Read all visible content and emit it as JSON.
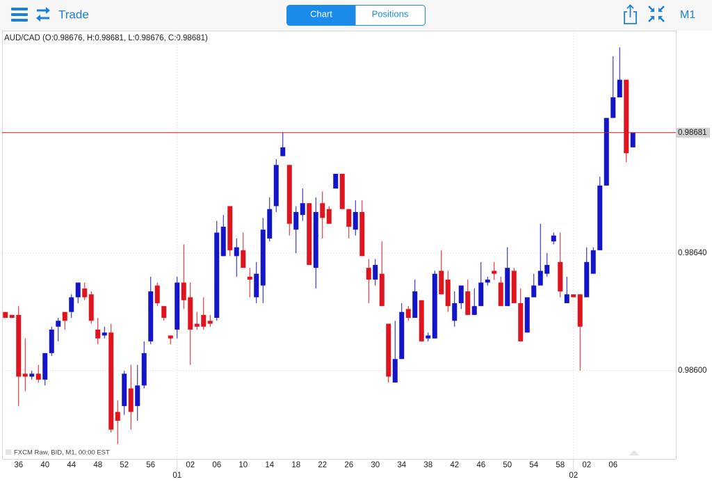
{
  "toolbar": {
    "title": "Trade",
    "tabs": [
      "Chart",
      "Positions"
    ],
    "timeframe": "M1"
  },
  "chart_data": {
    "type": "candlestick",
    "title": "AUD/CAD (O:0.98676, H:0.98681, L:0.98676, C:0.98681)",
    "footnote": "FXCM Raw, BID, M1, 00:00 EST",
    "up_color": "#1414c8",
    "down_color": "#e0141e",
    "series": [
      {
        "open": [
          0.9862,
          0.98619,
          0.98619,
          0.98599,
          0.98598,
          0.98599,
          0.98597,
          0.98606,
          0.98615,
          0.9862,
          0.9862,
          0.98625,
          0.98628,
          0.98626,
          0.98614,
          0.98612,
          0.98613,
          0.98586,
          0.98588,
          0.98594,
          0.98588,
          0.98595,
          0.9861,
          0.98629,
          0.98622,
          0.98612,
          0.98614,
          0.9863,
          0.98625,
          0.98616,
          0.98619,
          0.98617,
          0.98618,
          0.98639,
          0.98656,
          0.98639,
          0.98641,
          0.98632,
          0.98625,
          0.98629,
          0.98645,
          0.98656,
          0.98673,
          0.9867,
          0.98648,
          0.98653,
          0.98657,
          0.98635,
          0.98657,
          0.98655,
          0.98662,
          0.98667,
          0.98655,
          0.98648,
          0.98654,
          0.98635,
          0.98631,
          0.98633,
          0.98616,
          0.98596,
          0.98604,
          0.98621,
          0.98618,
          0.98624,
          0.98611,
          0.98611,
          0.98634,
          0.98631,
          0.98617,
          0.98623,
          0.98627,
          0.98619,
          0.98622,
          0.9863,
          0.98634,
          0.9863,
          0.98622,
          0.98634,
          0.98623,
          0.98613,
          0.98625,
          0.98629,
          0.98633,
          0.98644,
          0.98637,
          0.98623,
          0.98626,
          0.98626,
          0.98625,
          0.98633,
          0.98641,
          0.98663,
          0.98686,
          0.98693,
          0.98699,
          0.98676
        ],
        "high": [
          0.9862,
          0.98619,
          0.98622,
          0.98611,
          0.986,
          0.98602,
          0.98606,
          0.98615,
          0.98618,
          0.9862,
          0.98626,
          0.9863,
          0.9863,
          0.98627,
          0.98618,
          0.98615,
          0.98616,
          0.9859,
          0.986,
          0.98602,
          0.98602,
          0.9861,
          0.98632,
          0.9863,
          0.98622,
          0.98612,
          0.98632,
          0.98643,
          0.9863,
          0.9862,
          0.98625,
          0.98619,
          0.98651,
          0.98653,
          0.98656,
          0.98645,
          0.98647,
          0.98635,
          0.98637,
          0.98652,
          0.98659,
          0.98672,
          0.98681,
          0.9867,
          0.98656,
          0.98662,
          0.98657,
          0.98659,
          0.98661,
          0.98656,
          0.98667,
          0.98667,
          0.98655,
          0.98658,
          0.98658,
          0.98638,
          0.98638,
          0.98644,
          0.98616,
          0.98617,
          0.98623,
          0.98622,
          0.98631,
          0.98624,
          0.98613,
          0.98634,
          0.98641,
          0.98634,
          0.98627,
          0.98629,
          0.98631,
          0.98628,
          0.98637,
          0.98632,
          0.98637,
          0.98632,
          0.98642,
          0.98635,
          0.98628,
          0.98625,
          0.98633,
          0.9865,
          0.9864,
          0.98647,
          0.98647,
          0.98632,
          0.98626,
          0.98626,
          0.98642,
          0.98642,
          0.98666,
          0.98686,
          0.98707,
          0.9871,
          0.98699,
          0.98681
        ],
        "low": [
          0.98618,
          0.98618,
          0.98588,
          0.98593,
          0.98597,
          0.98596,
          0.98595,
          0.98605,
          0.9861,
          0.98614,
          0.98618,
          0.98623,
          0.98624,
          0.98616,
          0.98609,
          0.98611,
          0.98579,
          0.98575,
          0.98585,
          0.9858,
          0.98583,
          0.98594,
          0.98609,
          0.98622,
          0.98617,
          0.98609,
          0.98611,
          0.98621,
          0.98602,
          0.98614,
          0.98614,
          0.98615,
          0.98617,
          0.98639,
          0.98639,
          0.98632,
          0.98635,
          0.98625,
          0.98623,
          0.98623,
          0.98644,
          0.98654,
          0.98673,
          0.98646,
          0.9864,
          0.98651,
          0.98636,
          0.98628,
          0.98645,
          0.9865,
          0.98662,
          0.98655,
          0.98645,
          0.98646,
          0.98639,
          0.98623,
          0.98629,
          0.98622,
          0.98596,
          0.98596,
          0.98604,
          0.98617,
          0.98618,
          0.9861,
          0.9861,
          0.98611,
          0.98626,
          0.9862,
          0.98615,
          0.98621,
          0.98619,
          0.98619,
          0.98622,
          0.98629,
          0.98631,
          0.98622,
          0.98622,
          0.98623,
          0.9861,
          0.98613,
          0.98625,
          0.98629,
          0.98632,
          0.98643,
          0.98625,
          0.98623,
          0.98625,
          0.986,
          0.98625,
          0.98633,
          0.98641,
          0.98663,
          0.98686,
          0.98693,
          0.98671,
          0.98676
        ],
        "close": [
          0.98618,
          0.98618,
          0.98598,
          0.98598,
          0.98599,
          0.98597,
          0.98606,
          0.98614,
          0.98617,
          0.98617,
          0.98625,
          0.9863,
          0.98625,
          0.98617,
          0.98611,
          0.98613,
          0.9858,
          0.98583,
          0.98599,
          0.98586,
          0.98595,
          0.98606,
          0.98627,
          0.98623,
          0.98618,
          0.98611,
          0.9863,
          0.98624,
          0.98614,
          0.98615,
          0.98615,
          0.98616,
          0.98647,
          0.98649,
          0.98641,
          0.98642,
          0.98635,
          0.98631,
          0.98633,
          0.98648,
          0.98655,
          0.9867,
          0.98676,
          0.9865,
          0.98654,
          0.98657,
          0.98636,
          0.98654,
          0.98652,
          0.9865,
          0.98667,
          0.98655,
          0.98649,
          0.98654,
          0.98639,
          0.98631,
          0.98636,
          0.98622,
          0.98598,
          0.98604,
          0.9862,
          0.98618,
          0.98627,
          0.9861,
          0.98612,
          0.98633,
          0.98626,
          0.98622,
          0.98623,
          0.98629,
          0.98619,
          0.98622,
          0.9863,
          0.98631,
          0.98633,
          0.98622,
          0.98635,
          0.98623,
          0.9861,
          0.98625,
          0.98629,
          0.98634,
          0.98636,
          0.98646,
          0.98627,
          0.98626,
          0.98625,
          0.98615,
          0.98637,
          0.98641,
          0.98663,
          0.98686,
          0.98693,
          0.98699,
          0.98674,
          0.98681
        ]
      }
    ],
    "ylim": [
      0.9857,
      0.98715
    ],
    "yticks": [
      {
        "value": 0.986,
        "label": "0.98600"
      },
      {
        "value": 0.9864,
        "label": "0.98640"
      }
    ],
    "last_price": {
      "value": 0.98681,
      "label": "0.98681",
      "color": "#c81e1e"
    },
    "xlim": [
      -0.5,
      101.5
    ],
    "xticks": [
      {
        "value": 2,
        "label": "36"
      },
      {
        "value": 6,
        "label": "40"
      },
      {
        "value": 10,
        "label": "44"
      },
      {
        "value": 14,
        "label": "48"
      },
      {
        "value": 18,
        "label": "52"
      },
      {
        "value": 22,
        "label": "56"
      },
      {
        "value": 28,
        "label": "02"
      },
      {
        "value": 32,
        "label": "06"
      },
      {
        "value": 36,
        "label": "10"
      },
      {
        "value": 40,
        "label": "14"
      },
      {
        "value": 44,
        "label": "18"
      },
      {
        "value": 48,
        "label": "22"
      },
      {
        "value": 52,
        "label": "26"
      },
      {
        "value": 56,
        "label": "30"
      },
      {
        "value": 60,
        "label": "34"
      },
      {
        "value": 64,
        "label": "38"
      },
      {
        "value": 68,
        "label": "42"
      },
      {
        "value": 72,
        "label": "46"
      },
      {
        "value": 76,
        "label": "50"
      },
      {
        "value": 80,
        "label": "54"
      },
      {
        "value": 84,
        "label": "58"
      },
      {
        "value": 88,
        "label": "02"
      },
      {
        "value": 92,
        "label": "06"
      }
    ],
    "date_ticks": [
      {
        "value": 26,
        "label": "01"
      },
      {
        "value": 86,
        "label": "02"
      }
    ],
    "grid": true
  }
}
